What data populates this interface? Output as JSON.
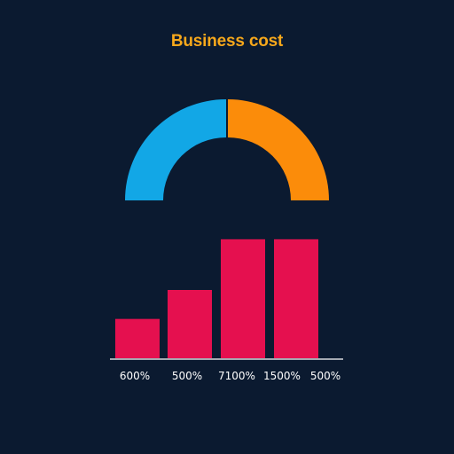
{
  "title": "Business cost",
  "colors": {
    "background": "#0b1a30",
    "title": "#f7a81b",
    "gauge_left": "#12a7e6",
    "gauge_right": "#fb8c0a",
    "bars": "#e5104f",
    "axis": "#ffffff",
    "tick_text": "#ffffff"
  },
  "chart_data": [
    {
      "type": "pie",
      "variant": "half-donut",
      "title": "",
      "slices": [
        {
          "value": 50,
          "color": "#12a7e6"
        },
        {
          "value": 50,
          "color": "#fb8c0a"
        }
      ]
    },
    {
      "type": "bar",
      "title": "",
      "xlabel": "",
      "ylabel": "",
      "ylim": [
        0,
        120
      ],
      "grid": false,
      "categories": [
        "600%",
        "500%",
        "7100%",
        "1500%",
        "500%"
      ],
      "values": [
        38,
        66,
        115,
        115,
        null
      ],
      "bar_color": "#e5104f"
    }
  ]
}
